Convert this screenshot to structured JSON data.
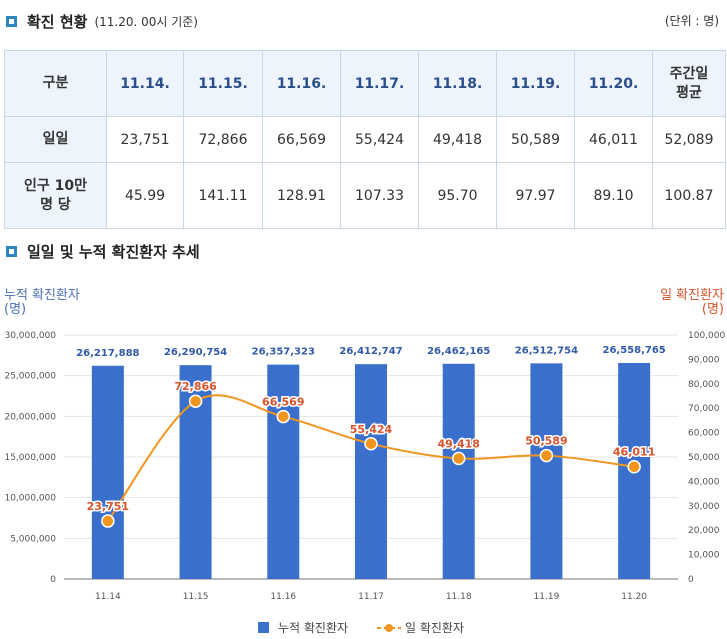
{
  "status": {
    "title": "확진 현황",
    "basis": "(11.20. 00시 기준)",
    "unit": "(단위 : 명)",
    "header": [
      "구분",
      "11.14.",
      "11.15.",
      "11.16.",
      "11.17.",
      "11.18.",
      "11.19.",
      "11.20.",
      "주간일\n평균"
    ],
    "rows": [
      {
        "label": "일일",
        "values": [
          "23,751",
          "72,866",
          "66,569",
          "55,424",
          "49,418",
          "50,589",
          "46,011",
          "52,089"
        ]
      },
      {
        "label": "인구 10만\n명 당",
        "values": [
          "45.99",
          "141.11",
          "128.91",
          "107.33",
          "95.70",
          "97.97",
          "89.10",
          "100.87"
        ]
      }
    ]
  },
  "trend": {
    "title": "일일 및 누적 확진환자 추세"
  },
  "chart_data": {
    "type": "bar",
    "categories": [
      "11.14",
      "11.15",
      "11.16",
      "11.17",
      "11.18",
      "11.19",
      "11.20"
    ],
    "series": [
      {
        "name": "누적 확진환자",
        "type": "bar",
        "axis": "left",
        "color": "#3a6fcc",
        "values": [
          26217888,
          26290754,
          26357323,
          26412747,
          26462165,
          26512754,
          26558765
        ],
        "labels": [
          "26,217,888",
          "26,290,754",
          "26,357,323",
          "26,412,747",
          "26,462,165",
          "26,512,754",
          "26,558,765"
        ]
      },
      {
        "name": "일 확진환자",
        "type": "line",
        "axis": "right",
        "color": "#f0951f",
        "values": [
          23751,
          72866,
          66569,
          55424,
          49418,
          50589,
          46011
        ],
        "labels": [
          "23,751",
          "72,866",
          "66,569",
          "55,424",
          "49,418",
          "50,589",
          "46,011"
        ]
      }
    ],
    "left_axis": {
      "label": "누적 확진환자\n(명)",
      "ylim": [
        0,
        30000000
      ],
      "ticks": [
        "0",
        "5,000,000",
        "10,000,000",
        "15,000,000",
        "20,000,000",
        "25,000,000",
        "30,000,000"
      ],
      "color": "#4a6fb5"
    },
    "right_axis": {
      "label": "일 확진환자\n(명)",
      "ylim": [
        0,
        100000
      ],
      "ticks": [
        "0",
        "10,000",
        "20,000",
        "30,000",
        "40,000",
        "50,000",
        "60,000",
        "70,000",
        "80,000",
        "90,000",
        "100,000"
      ],
      "color": "#d9532c"
    },
    "grid": true,
    "legend": "bottom"
  }
}
